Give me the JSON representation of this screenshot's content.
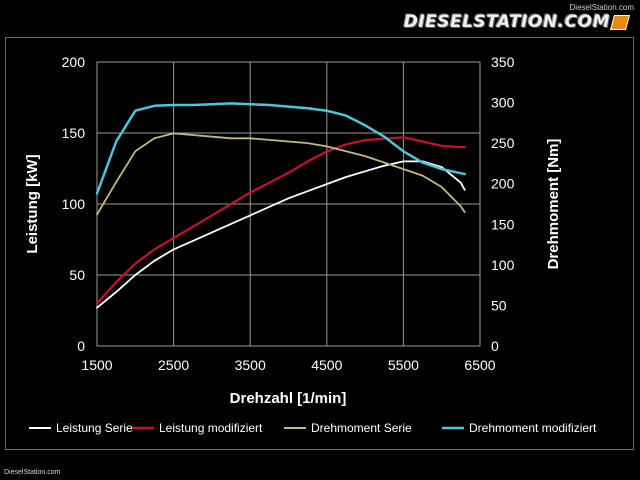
{
  "watermark": {
    "small": "DieselStation.com",
    "brand": "DIESELSTATION.COM",
    "footer": "DieselStation.com"
  },
  "chart_data": {
    "type": "line",
    "xlabel": "Drehzahl [1/min]",
    "ylabel_left": "Leistung [kW]",
    "ylabel_right": "Drehmoment [Nm]",
    "xlim": [
      1500,
      6500
    ],
    "ylim_left": [
      0,
      200
    ],
    "ylim_right": [
      0,
      350
    ],
    "x_ticks": [
      1500,
      2500,
      3500,
      4500,
      5500,
      6500
    ],
    "y_ticks_left": [
      0,
      50,
      100,
      150,
      200
    ],
    "y_ticks_right": [
      0,
      50,
      100,
      150,
      200,
      250,
      300,
      350
    ],
    "grid": true,
    "legend_position": "bottom",
    "series": [
      {
        "name": "Leistung Serie",
        "axis": "left",
        "color": "#ffffff",
        "x": [
          1500,
          1750,
          2000,
          2250,
          2500,
          2750,
          3000,
          3250,
          3500,
          3750,
          4000,
          4250,
          4500,
          4750,
          5000,
          5250,
          5500,
          5750,
          6000,
          6250,
          6300
        ],
        "y": [
          27,
          38,
          50,
          60,
          68,
          74,
          80,
          86,
          92,
          98,
          104,
          109,
          114,
          119,
          123,
          127,
          130,
          130,
          126,
          115,
          110
        ]
      },
      {
        "name": "Leistung modifiziert",
        "axis": "left",
        "color": "#c8102e",
        "x": [
          1500,
          1750,
          2000,
          2250,
          2500,
          2750,
          3000,
          3250,
          3500,
          3750,
          4000,
          4250,
          4500,
          4750,
          5000,
          5250,
          5500,
          5750,
          6000,
          6250,
          6300
        ],
        "y": [
          30,
          45,
          58,
          68,
          76,
          84,
          92,
          100,
          108,
          115,
          122,
          130,
          137,
          142,
          145,
          146,
          147,
          144,
          141,
          140,
          140
        ]
      },
      {
        "name": "Drehmoment Serie",
        "axis": "right",
        "color": "#c2b880",
        "x": [
          1500,
          1750,
          2000,
          2250,
          2500,
          2750,
          3000,
          3250,
          3500,
          3750,
          4000,
          4250,
          4500,
          4750,
          5000,
          5250,
          5500,
          5750,
          6000,
          6250,
          6300
        ],
        "y": [
          162,
          202,
          240,
          256,
          262,
          260,
          258,
          256,
          256,
          254,
          252,
          250,
          246,
          240,
          234,
          226,
          218,
          210,
          196,
          172,
          165
        ]
      },
      {
        "name": "Drehmoment modifiziert",
        "axis": "right",
        "color": "#4ec5d8",
        "x": [
          1500,
          1750,
          2000,
          2250,
          2500,
          2750,
          3000,
          3250,
          3500,
          3750,
          4000,
          4250,
          4500,
          4750,
          5000,
          5250,
          5500,
          5750,
          6000,
          6250,
          6300
        ],
        "y": [
          188,
          252,
          290,
          296,
          297,
          297,
          298,
          299,
          298,
          297,
          295,
          293,
          290,
          284,
          272,
          258,
          240,
          226,
          218,
          213,
          212
        ]
      }
    ]
  }
}
